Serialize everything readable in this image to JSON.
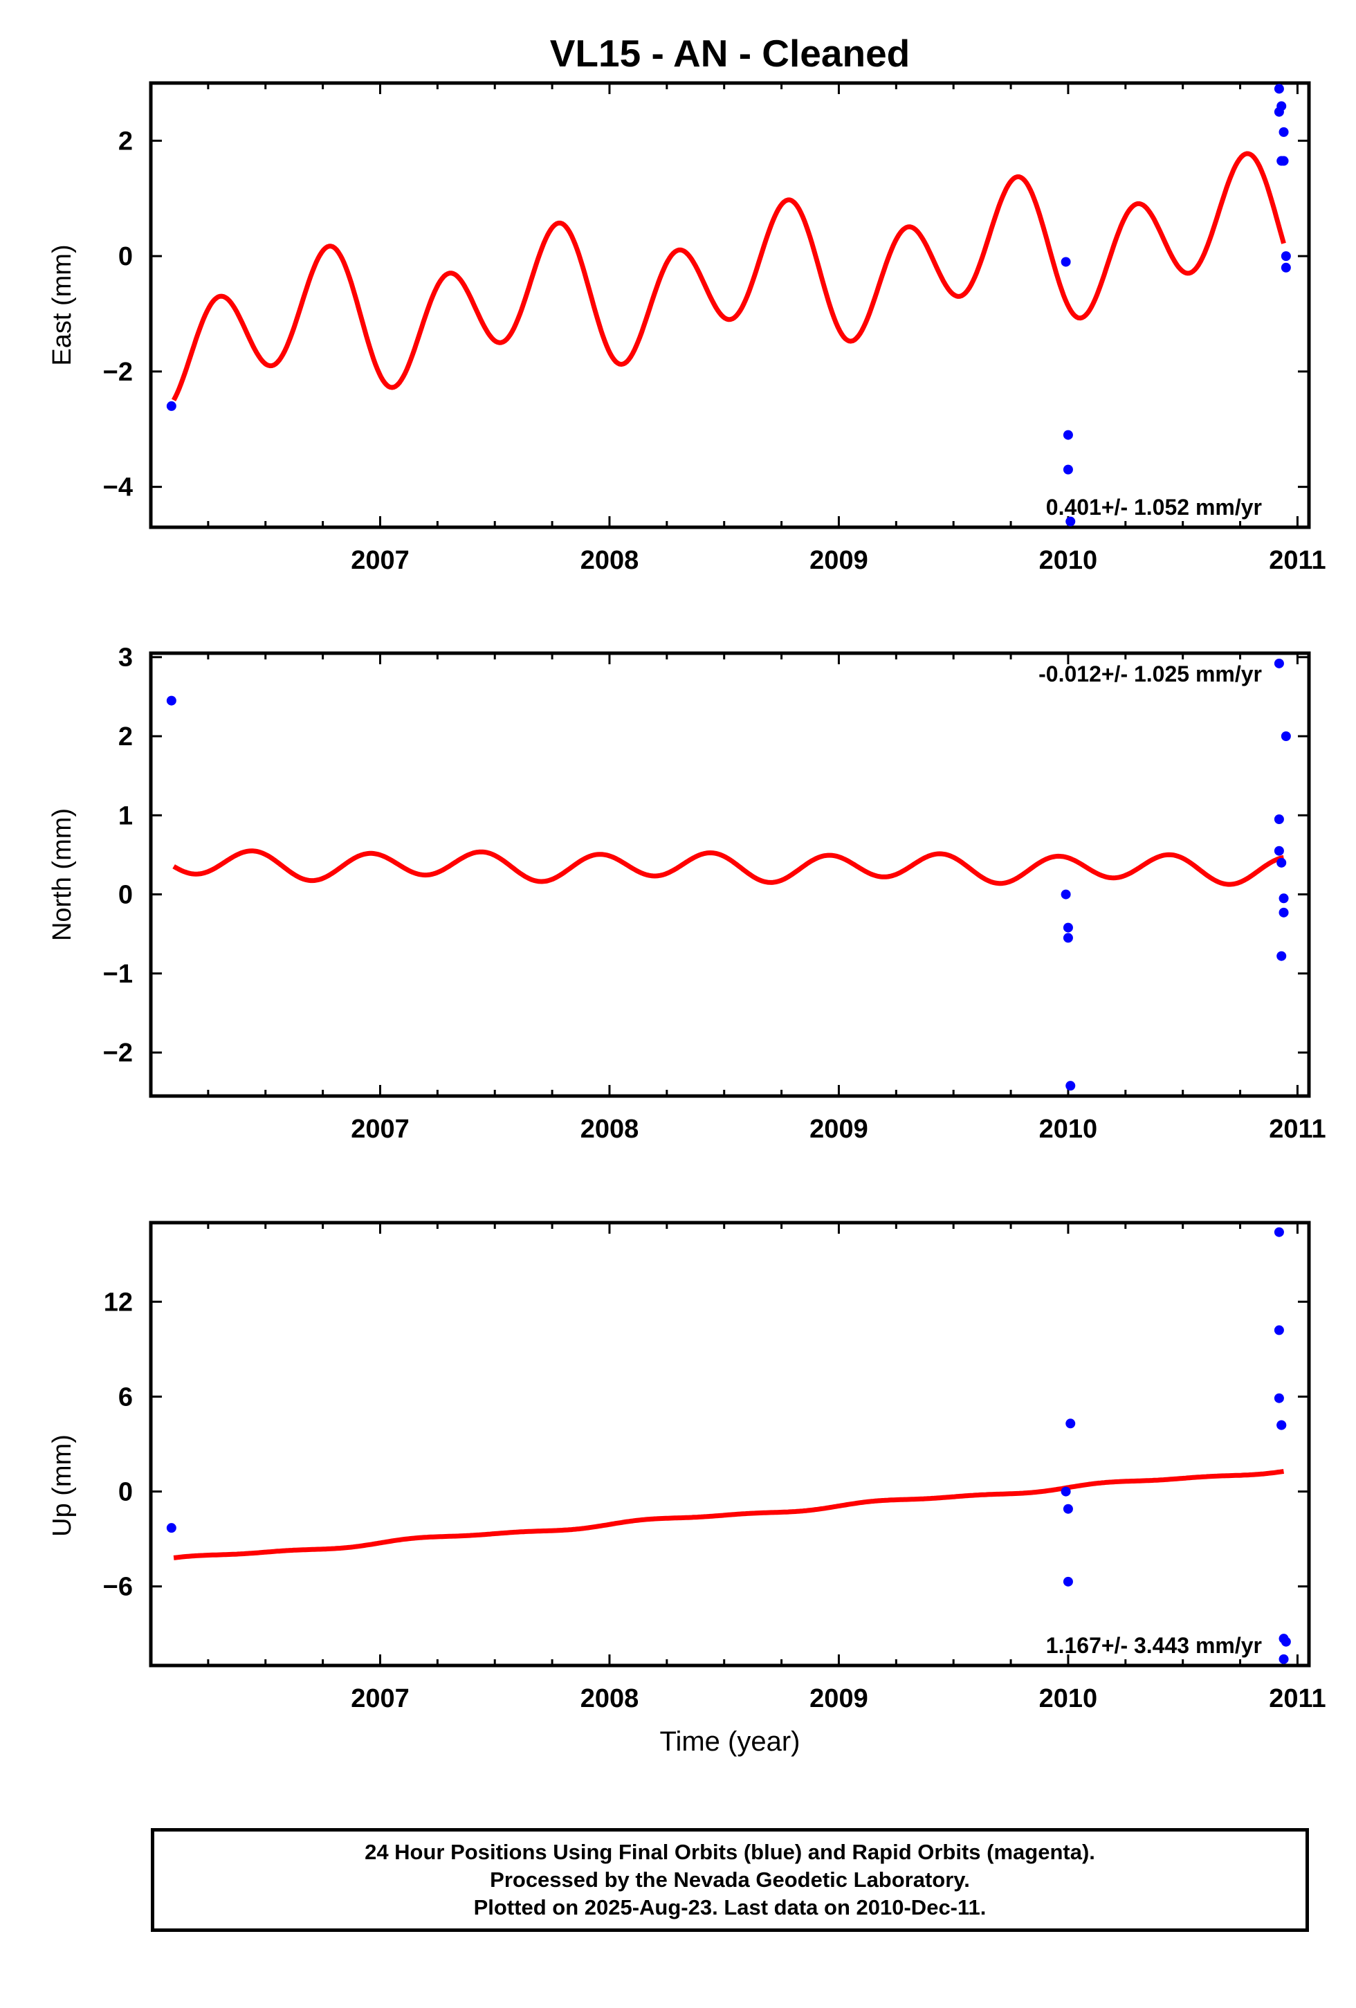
{
  "title": "VL15  - AN - Cleaned",
  "colors": {
    "model": "#ff0000",
    "data": "#0000ff",
    "frame": "#000000"
  },
  "xlabel": "Time (year)",
  "footer": {
    "line1": "24 Hour Positions Using Final Orbits (blue) and Rapid Orbits (magenta).",
    "line2": "Processed by the Nevada Geodetic Laboratory.",
    "line3": "Plotted on 2025-Aug-23. Last data on 2010-Dec-11."
  },
  "chart_data": [
    {
      "type": "scatter",
      "ylabel": "East (mm)",
      "xlim": [
        2006.0,
        2011.05
      ],
      "ylim": [
        -4.7,
        3.0
      ],
      "xticks": [
        2007,
        2008,
        2009,
        2010,
        2011
      ],
      "yticks": [
        -4,
        -2,
        0,
        2
      ],
      "ytick_labels": [
        "−4",
        "−2",
        "0",
        "2"
      ],
      "rate_label": "0.401+/- 1.052 mm/yr",
      "rate_position": "bottom-right",
      "series": [
        {
          "kind": "points",
          "x": [
            2006.09,
            2009.99,
            2010.0,
            2010.0,
            2010.01,
            2010.92,
            2010.92,
            2010.93,
            2010.93,
            2010.94,
            2010.94,
            2010.95,
            2010.95
          ],
          "y": [
            -2.6,
            -0.1,
            -3.1,
            -3.7,
            -4.6,
            2.9,
            2.5,
            2.6,
            1.65,
            1.65,
            2.15,
            0.0,
            -0.2
          ]
        },
        {
          "kind": "model",
          "trend": {
            "t0": 2006.1,
            "y0": -1.4,
            "rate": 0.401
          },
          "annual": {
            "amplitude": 0.45,
            "phase": 3.6
          },
          "semiannual": {
            "amplitude": 0.95,
            "phase": 4.2
          },
          "x_range": [
            2006.1,
            2010.94
          ]
        }
      ]
    },
    {
      "type": "scatter",
      "ylabel": "North (mm)",
      "xlim": [
        2006.0,
        2011.05
      ],
      "ylim": [
        -2.55,
        3.05
      ],
      "xticks": [
        2007,
        2008,
        2009,
        2010,
        2011
      ],
      "yticks": [
        -2,
        -1,
        0,
        1,
        2,
        3
      ],
      "ytick_labels": [
        "−2",
        "−1",
        "0",
        "1",
        "2",
        "3"
      ],
      "rate_label": "-0.012+/- 1.025 mm/yr",
      "rate_position": "top-right",
      "series": [
        {
          "kind": "points",
          "x": [
            2006.09,
            2009.99,
            2010.0,
            2010.0,
            2010.01,
            2010.92,
            2010.92,
            2010.92,
            2010.93,
            2010.93,
            2010.94,
            2010.94,
            2010.95
          ],
          "y": [
            2.45,
            0.0,
            -0.42,
            -0.55,
            -2.42,
            2.92,
            0.95,
            0.55,
            0.4,
            -0.78,
            -0.05,
            -0.23,
            2.0
          ]
        },
        {
          "kind": "model",
          "trend": {
            "t0": 2006.1,
            "y0": 0.38,
            "rate": -0.012
          },
          "annual": {
            "amplitude": 0.04,
            "phase": 0.0
          },
          "semiannual": {
            "amplitude": 0.16,
            "phase": 2.2
          },
          "x_range": [
            2006.1,
            2010.94
          ]
        }
      ]
    },
    {
      "type": "scatter",
      "ylabel": "Up (mm)",
      "xlim": [
        2006.0,
        2011.05
      ],
      "ylim": [
        -11.0,
        17.0
      ],
      "xticks": [
        2007,
        2008,
        2009,
        2010,
        2011
      ],
      "yticks": [
        -6,
        0,
        6,
        12
      ],
      "ytick_labels": [
        "−6",
        "0",
        "6",
        "12"
      ],
      "rate_label": "1.167+/- 3.443 mm/yr",
      "rate_position": "bottom-right",
      "series": [
        {
          "kind": "points",
          "x": [
            2006.09,
            2009.99,
            2010.0,
            2010.0,
            2010.01,
            2010.92,
            2010.92,
            2010.92,
            2010.93,
            2010.93,
            2010.94,
            2010.94,
            2010.95
          ],
          "y": [
            -2.3,
            0.0,
            -1.1,
            -5.7,
            4.3,
            16.4,
            10.2,
            5.9,
            4.2,
            4.2,
            -9.3,
            -10.6,
            -9.5
          ]
        },
        {
          "kind": "model",
          "trend": {
            "t0": 2006.1,
            "y0": -4.3,
            "rate": 1.167
          },
          "annual": {
            "amplitude": 0.1,
            "phase": 0.0
          },
          "semiannual": {
            "amplitude": 0.05,
            "phase": 0.0
          },
          "x_range": [
            2006.1,
            2010.94
          ]
        }
      ]
    }
  ]
}
